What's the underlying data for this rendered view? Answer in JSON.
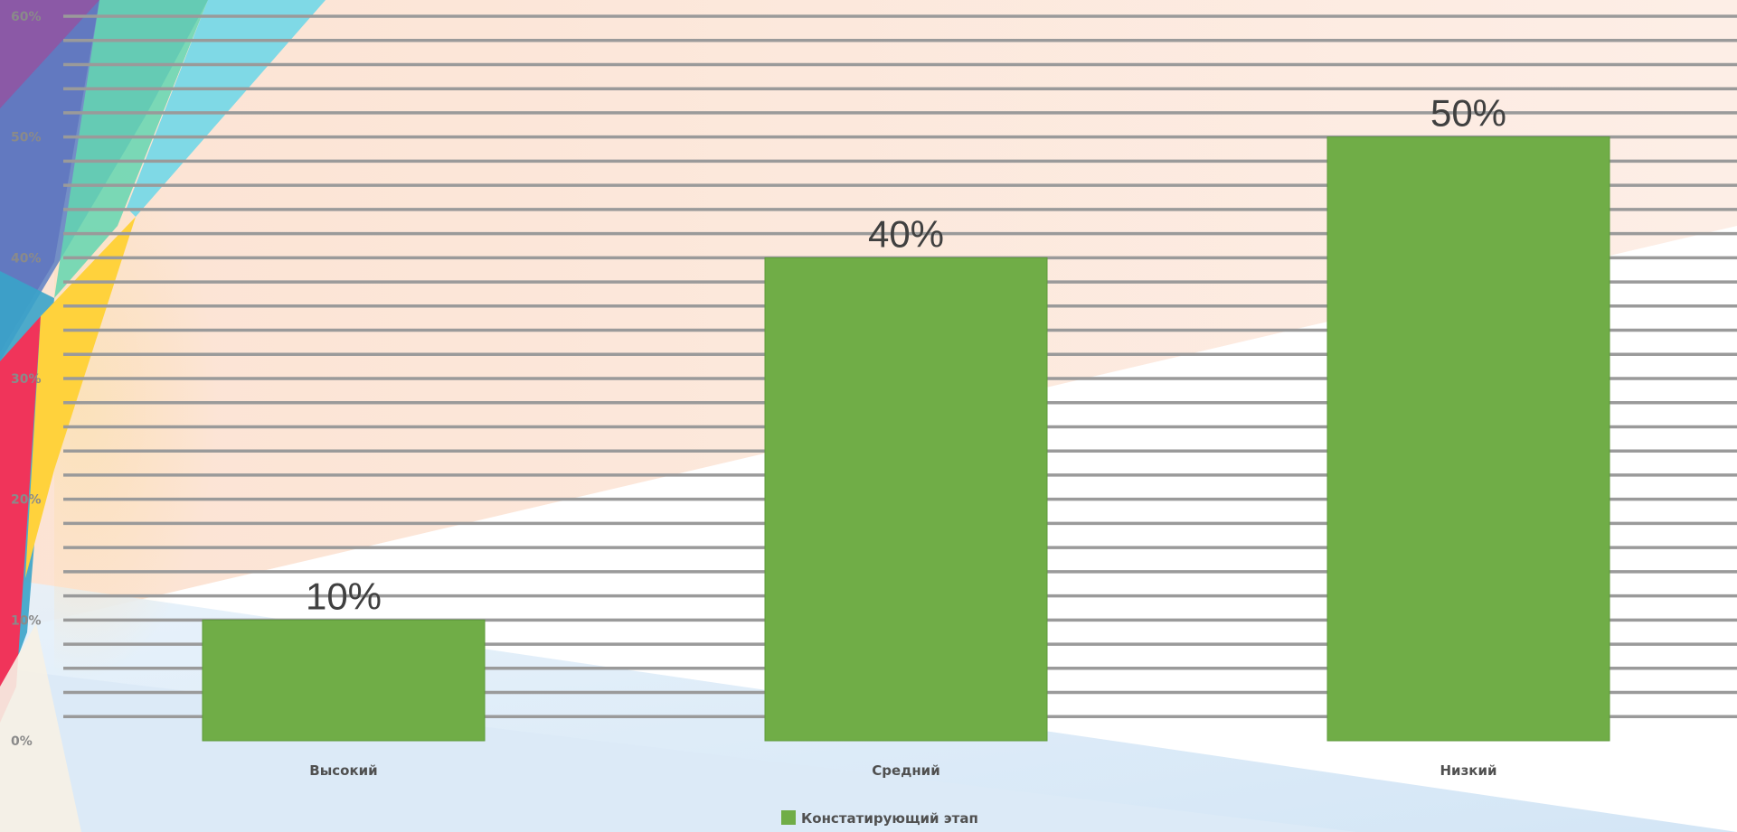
{
  "chart_data": {
    "type": "bar",
    "categories": [
      "Высокий",
      "Средний",
      "Низкий"
    ],
    "series": [
      {
        "name": "Констатирующий этап",
        "values": [
          10,
          40,
          50
        ],
        "color": "#70ad47"
      }
    ],
    "data_labels": [
      "10%",
      "40%",
      "50%"
    ],
    "ylim": [
      0,
      60
    ],
    "yticks": [
      "0%",
      "10%",
      "20%",
      "30%",
      "40%",
      "50%",
      "60%"
    ],
    "grid": true,
    "legend": "bottom-center",
    "title": "",
    "xlabel": "",
    "ylabel": ""
  }
}
